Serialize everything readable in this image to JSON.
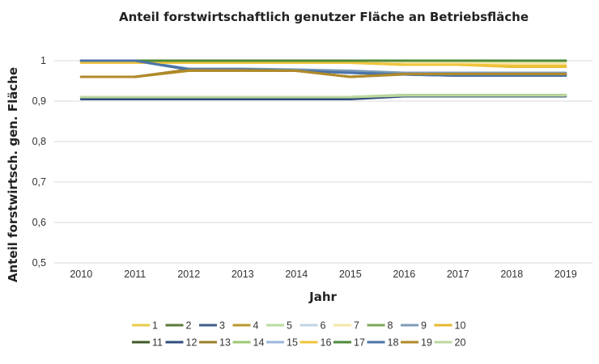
{
  "chart_data": {
    "type": "line",
    "title": "Anteil forstwirtschaftlich genutzer Fläche an Betriebsfläche",
    "xlabel": "Jahr",
    "ylabel": "Anteil forstwirtsch. gen. Fläche",
    "x": [
      2010,
      2011,
      2012,
      2013,
      2014,
      2015,
      2016,
      2017,
      2018,
      2019
    ],
    "ylim": [
      0.5,
      1.0
    ],
    "yticks": [
      0.5,
      0.6,
      0.7,
      0.8,
      0.9,
      1.0
    ],
    "ytick_labels": [
      "0,5",
      "0,6",
      "0,7",
      "0,8",
      "0,9",
      "1"
    ],
    "grid": "horizontal",
    "legend_position": "bottom",
    "series": [
      {
        "name": "1",
        "color": "#e8cc4a",
        "values": [
          1.0,
          1.0,
          1.0,
          1.0,
          1.0,
          1.0,
          1.0,
          1.0,
          1.0,
          1.0
        ]
      },
      {
        "name": "2",
        "color": "#5a7a3a",
        "values": [
          1.0,
          1.0,
          1.0,
          1.0,
          1.0,
          1.0,
          1.0,
          1.0,
          1.0,
          1.0
        ]
      },
      {
        "name": "3",
        "color": "#3e5f8a",
        "values": [
          1.0,
          1.0,
          0.978,
          0.978,
          0.975,
          0.97,
          0.966,
          0.963,
          0.963,
          0.963
        ]
      },
      {
        "name": "4",
        "color": "#b8982e",
        "values": [
          0.96,
          0.96,
          0.975,
          0.975,
          0.975,
          0.96,
          0.968,
          0.968,
          0.968,
          0.968
        ]
      },
      {
        "name": "5",
        "color": "#b8dca0",
        "values": [
          0.91,
          0.91,
          0.91,
          0.91,
          0.91,
          0.91,
          0.915,
          0.915,
          0.915,
          0.915
        ]
      },
      {
        "name": "6",
        "color": "#c0d4e4",
        "values": [
          1.0,
          1.0,
          1.0,
          1.0,
          1.0,
          1.0,
          1.0,
          1.0,
          1.0,
          1.0
        ]
      },
      {
        "name": "7",
        "color": "#f4e6a8",
        "values": [
          0.995,
          0.995,
          0.995,
          0.995,
          0.995,
          0.995,
          0.995,
          0.995,
          0.995,
          0.995
        ]
      },
      {
        "name": "8",
        "color": "#7ca85a",
        "values": [
          1.0,
          1.0,
          1.0,
          1.0,
          1.0,
          1.0,
          1.0,
          1.0,
          1.0,
          1.0
        ]
      },
      {
        "name": "9",
        "color": "#7d9cb8",
        "values": [
          0.995,
          1.0,
          0.98,
          0.98,
          0.978,
          0.975,
          0.97,
          0.97,
          0.97,
          0.97
        ]
      },
      {
        "name": "10",
        "color": "#e6b82c",
        "values": [
          0.995,
          0.995,
          0.995,
          0.995,
          0.995,
          0.995,
          0.99,
          0.99,
          0.985,
          0.985
        ]
      },
      {
        "name": "11",
        "color": "#3f5a2a",
        "values": [
          1.0,
          1.0,
          1.0,
          1.0,
          1.0,
          1.0,
          1.0,
          1.0,
          1.0,
          1.0
        ]
      },
      {
        "name": "12",
        "color": "#2f4c7c",
        "values": [
          0.905,
          0.905,
          0.905,
          0.905,
          0.905,
          0.905,
          0.912,
          0.912,
          0.912,
          0.912
        ]
      },
      {
        "name": "13",
        "color": "#9a7e2a",
        "values": [
          0.96,
          0.96,
          0.978,
          0.978,
          0.975,
          0.96,
          0.966,
          0.966,
          0.966,
          0.966
        ]
      },
      {
        "name": "14",
        "color": "#9cc874",
        "values": [
          0.91,
          0.91,
          0.91,
          0.91,
          0.91,
          0.91,
          0.915,
          0.915,
          0.915,
          0.915
        ]
      },
      {
        "name": "15",
        "color": "#9cb8dc",
        "values": [
          1.0,
          1.0,
          1.0,
          1.0,
          1.0,
          1.0,
          1.0,
          1.0,
          1.0,
          1.0
        ]
      },
      {
        "name": "16",
        "color": "#f0c43c",
        "values": [
          0.995,
          0.995,
          0.995,
          0.995,
          0.995,
          0.995,
          0.99,
          0.99,
          0.988,
          0.988
        ]
      },
      {
        "name": "17",
        "color": "#4e8a3a",
        "values": [
          1.0,
          1.0,
          1.0,
          1.0,
          1.0,
          1.0,
          1.0,
          1.0,
          1.0,
          1.0
        ]
      },
      {
        "name": "18",
        "color": "#4a74a8",
        "values": [
          1.0,
          1.0,
          0.978,
          0.978,
          0.975,
          0.97,
          0.966,
          0.963,
          0.963,
          0.963
        ]
      },
      {
        "name": "19",
        "color": "#b08a2a",
        "values": [
          0.96,
          0.96,
          0.976,
          0.976,
          0.975,
          0.96,
          0.967,
          0.967,
          0.967,
          0.967
        ]
      },
      {
        "name": "20",
        "color": "#bcd8a0",
        "values": [
          0.91,
          0.91,
          0.91,
          0.91,
          0.91,
          0.91,
          0.914,
          0.914,
          0.914,
          0.914
        ]
      }
    ]
  }
}
